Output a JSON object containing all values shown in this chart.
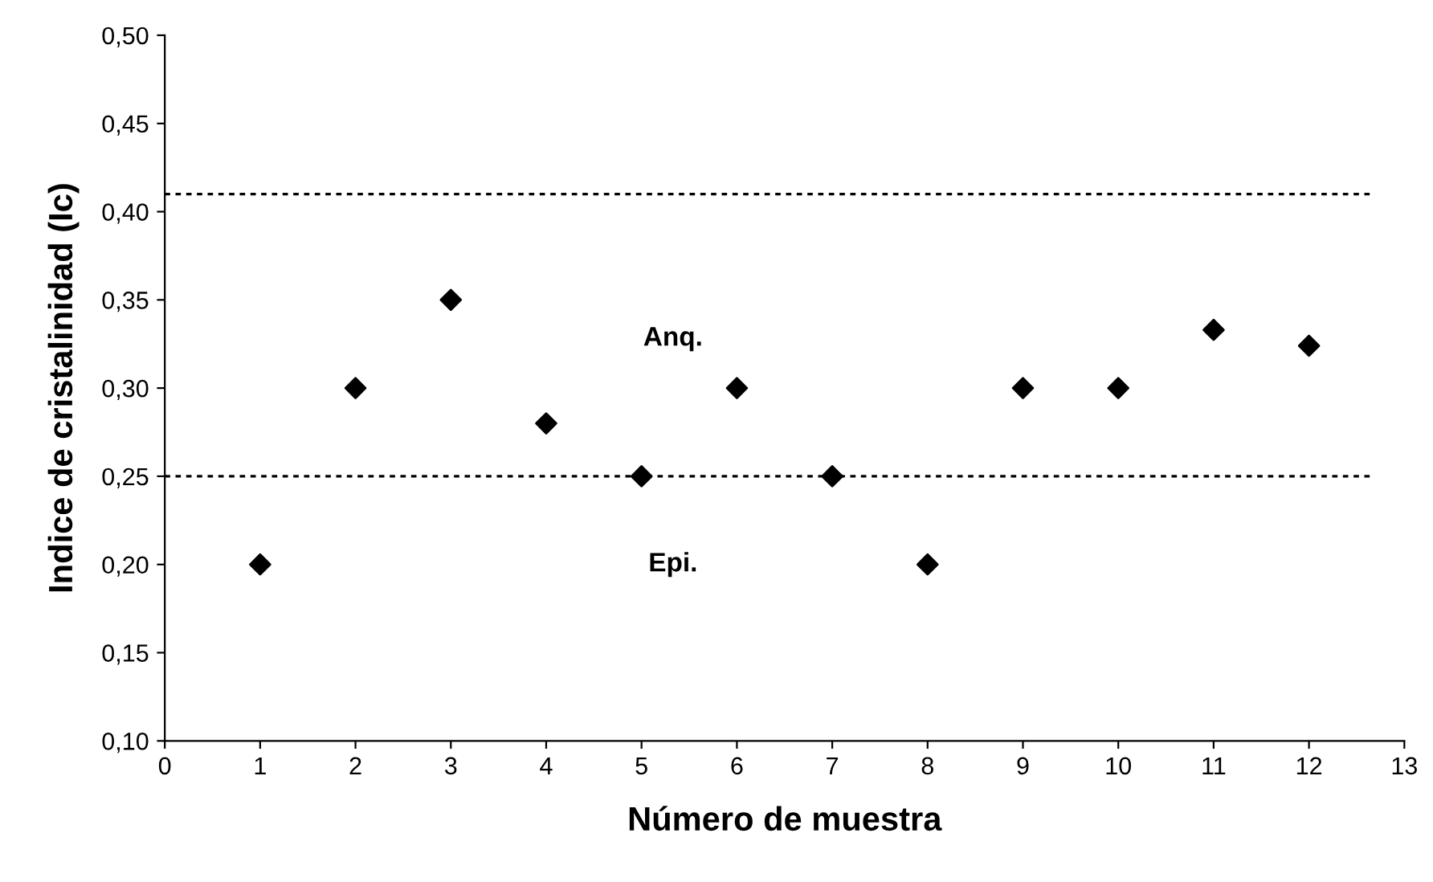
{
  "chart_data": {
    "type": "scatter",
    "xlabel": "Número de muestra",
    "ylabel": "Indice de cristalinidad (Ic)",
    "x": [
      1,
      2,
      3,
      4,
      5,
      6,
      7,
      8,
      9,
      10,
      11,
      12
    ],
    "values": [
      0.2,
      0.3,
      0.35,
      0.28,
      0.25,
      0.3,
      0.25,
      0.2,
      0.3,
      0.3,
      0.333,
      0.324
    ],
    "color": "#000000",
    "marker": "diamond",
    "xlim": [
      0,
      13
    ],
    "xticks": [
      0,
      1,
      2,
      3,
      4,
      5,
      6,
      7,
      8,
      9,
      10,
      11,
      12,
      13
    ],
    "ylim": [
      0.1,
      0.5
    ],
    "yticks": [
      {
        "value": 0.1,
        "label": "0,10"
      },
      {
        "value": 0.15,
        "label": "0,15"
      },
      {
        "value": 0.2,
        "label": "0,20"
      },
      {
        "value": 0.25,
        "label": "0,25"
      },
      {
        "value": 0.3,
        "label": "0,30"
      },
      {
        "value": 0.35,
        "label": "0,35"
      },
      {
        "value": 0.4,
        "label": "0,40"
      },
      {
        "value": 0.45,
        "label": "0,45"
      },
      {
        "value": 0.5,
        "label": "0,50"
      }
    ],
    "ref_lines": [
      {
        "axis": "y",
        "value": 0.41,
        "color": "#000000",
        "line_style": "dotted"
      },
      {
        "axis": "y",
        "value": 0.25,
        "color": "#000000",
        "line_style": "dotted"
      }
    ],
    "annotations": [
      "Anq.",
      "Epi."
    ],
    "grid": false,
    "legend": false
  }
}
